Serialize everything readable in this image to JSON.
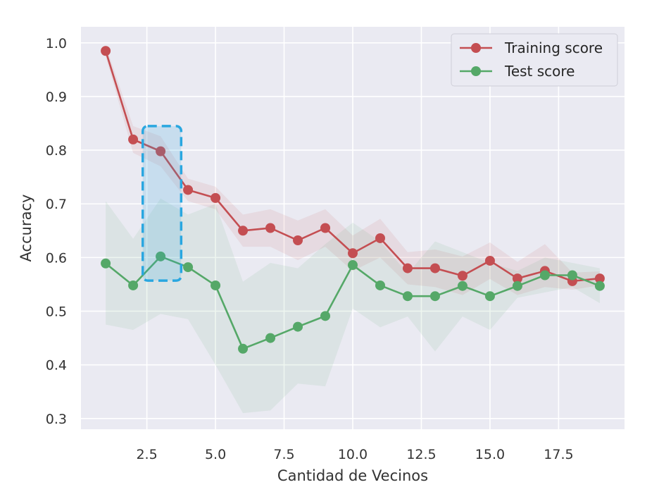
{
  "chart_data": {
    "type": "line",
    "xlabel": "Cantidad de Vecinos",
    "ylabel": "Accuracy",
    "xlim": [
      0.1,
      19.9
    ],
    "ylim": [
      0.28,
      1.03
    ],
    "xticks": [
      "2.5",
      "5.0",
      "7.5",
      "10.0",
      "12.5",
      "15.0",
      "17.5"
    ],
    "yticks": [
      "0.3",
      "0.4",
      "0.5",
      "0.6",
      "0.7",
      "0.8",
      "0.9",
      "1.0"
    ],
    "grid": true,
    "legend_position": "top-right",
    "x": [
      1,
      2,
      3,
      4,
      5,
      6,
      7,
      8,
      9,
      10,
      11,
      12,
      13,
      14,
      15,
      16,
      17,
      18,
      19
    ],
    "series": [
      {
        "name": "Training score",
        "color": "#c44e52",
        "values": [
          0.985,
          0.82,
          0.798,
          0.726,
          0.711,
          0.65,
          0.655,
          0.632,
          0.655,
          0.608,
          0.636,
          0.58,
          0.58,
          0.566,
          0.594,
          0.561,
          0.575,
          0.556,
          0.561
        ],
        "band_lower": [
          0.975,
          0.795,
          0.77,
          0.705,
          0.69,
          0.62,
          0.62,
          0.595,
          0.62,
          0.575,
          0.6,
          0.55,
          0.545,
          0.53,
          0.56,
          0.53,
          0.545,
          0.54,
          0.548
        ],
        "band_upper": [
          0.995,
          0.845,
          0.826,
          0.747,
          0.732,
          0.68,
          0.69,
          0.669,
          0.69,
          0.641,
          0.672,
          0.61,
          0.615,
          0.602,
          0.628,
          0.592,
          0.625,
          0.572,
          0.574
        ]
      },
      {
        "name": "Test score",
        "color": "#55a868",
        "values": [
          0.589,
          0.548,
          0.602,
          0.582,
          0.548,
          0.43,
          0.45,
          0.471,
          0.491,
          0.586,
          0.548,
          0.528,
          0.528,
          0.547,
          0.528,
          0.547,
          0.567,
          0.567,
          0.547
        ],
        "band_lower": [
          0.475,
          0.465,
          0.495,
          0.485,
          0.4,
          0.31,
          0.315,
          0.365,
          0.36,
          0.505,
          0.47,
          0.49,
          0.425,
          0.49,
          0.465,
          0.525,
          0.535,
          0.545,
          0.515
        ],
        "band_upper": [
          0.705,
          0.635,
          0.71,
          0.68,
          0.7,
          0.555,
          0.59,
          0.58,
          0.625,
          0.665,
          0.63,
          0.57,
          0.63,
          0.61,
          0.59,
          0.575,
          0.6,
          0.59,
          0.58
        ]
      }
    ],
    "highlight": {
      "x_range": [
        2.35,
        3.75
      ],
      "y_range": [
        0.557,
        0.845
      ],
      "color": "#2aa7e0"
    }
  },
  "colors": {
    "plot_background": "#eaeaf2",
    "grid": "#ffffff"
  }
}
